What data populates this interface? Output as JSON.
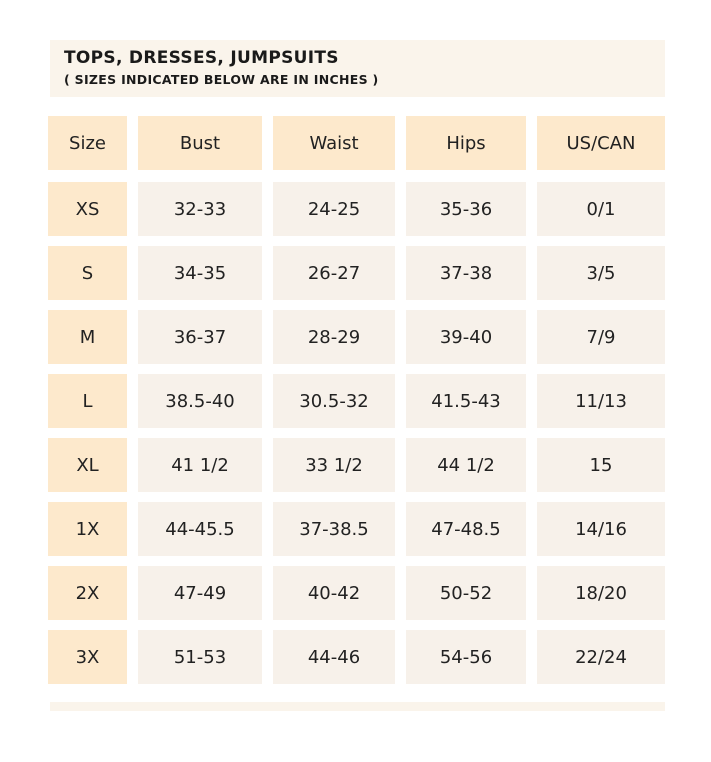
{
  "header": {
    "title": "TOPS, DRESSES, JUMPSUITS",
    "subtitle": "( SIZES INDICATED BELOW ARE IN INCHES )"
  },
  "table": {
    "columns": [
      "Size",
      "Bust",
      "Waist",
      "Hips",
      "US/CAN"
    ],
    "rows": [
      [
        "XS",
        "32-33",
        "24-25",
        "35-36",
        "0/1"
      ],
      [
        "S",
        "34-35",
        "26-27",
        "37-38",
        "3/5"
      ],
      [
        "M",
        "36-37",
        "28-29",
        "39-40",
        "7/9"
      ],
      [
        "L",
        "38.5-40",
        "30.5-32",
        "41.5-43",
        "11/13"
      ],
      [
        "XL",
        "41 1/2",
        "33 1/2",
        "44 1/2",
        "15"
      ],
      [
        "1X",
        "44-45.5",
        "37-38.5",
        "47-48.5",
        "14/16"
      ],
      [
        "2X",
        "47-49",
        "40-42",
        "50-52",
        "18/20"
      ],
      [
        "3X",
        "51-53",
        "44-46",
        "54-56",
        "22/24"
      ]
    ]
  }
}
